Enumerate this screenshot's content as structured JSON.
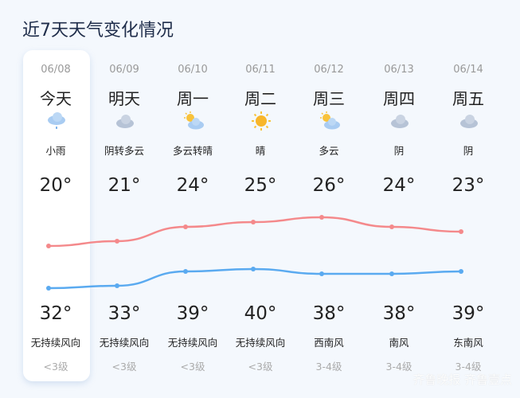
{
  "title": "近7天天气变化情况",
  "days": [
    {
      "date": "06/08",
      "day": "今天",
      "icon": "light-rain-icon",
      "cond": "小雨",
      "t1": "20°",
      "t2": "32°",
      "wind": "无持续风向",
      "level": "<3级"
    },
    {
      "date": "06/09",
      "day": "明天",
      "icon": "cloudy-icon",
      "cond": "阴转多云",
      "t1": "21°",
      "t2": "33°",
      "wind": "无持续风向",
      "level": "<3级"
    },
    {
      "date": "06/10",
      "day": "周一",
      "icon": "partly-cloudy-icon",
      "cond": "多云转晴",
      "t1": "24°",
      "t2": "39°",
      "wind": "无持续风向",
      "level": "<3级"
    },
    {
      "date": "06/11",
      "day": "周二",
      "icon": "sunny-icon",
      "cond": "晴",
      "t1": "25°",
      "t2": "40°",
      "wind": "无持续风向",
      "level": "<3级"
    },
    {
      "date": "06/12",
      "day": "周三",
      "icon": "partly-cloudy-icon",
      "cond": "多云",
      "t1": "26°",
      "t2": "38°",
      "wind": "西南风",
      "level": "3-4级"
    },
    {
      "date": "06/13",
      "day": "周四",
      "icon": "cloudy-icon",
      "cond": "阴",
      "t1": "24°",
      "t2": "38°",
      "wind": "南风",
      "level": "3-4级"
    },
    {
      "date": "06/14",
      "day": "周五",
      "icon": "cloudy-icon",
      "cond": "阴",
      "t1": "23°",
      "t2": "39°",
      "wind": "东南风",
      "level": "3-4级"
    }
  ],
  "colors": {
    "upper_line": "#f4898b",
    "lower_line": "#5aaaf0"
  },
  "watermark": "齐鲁晚报 齐鲁壹点"
}
